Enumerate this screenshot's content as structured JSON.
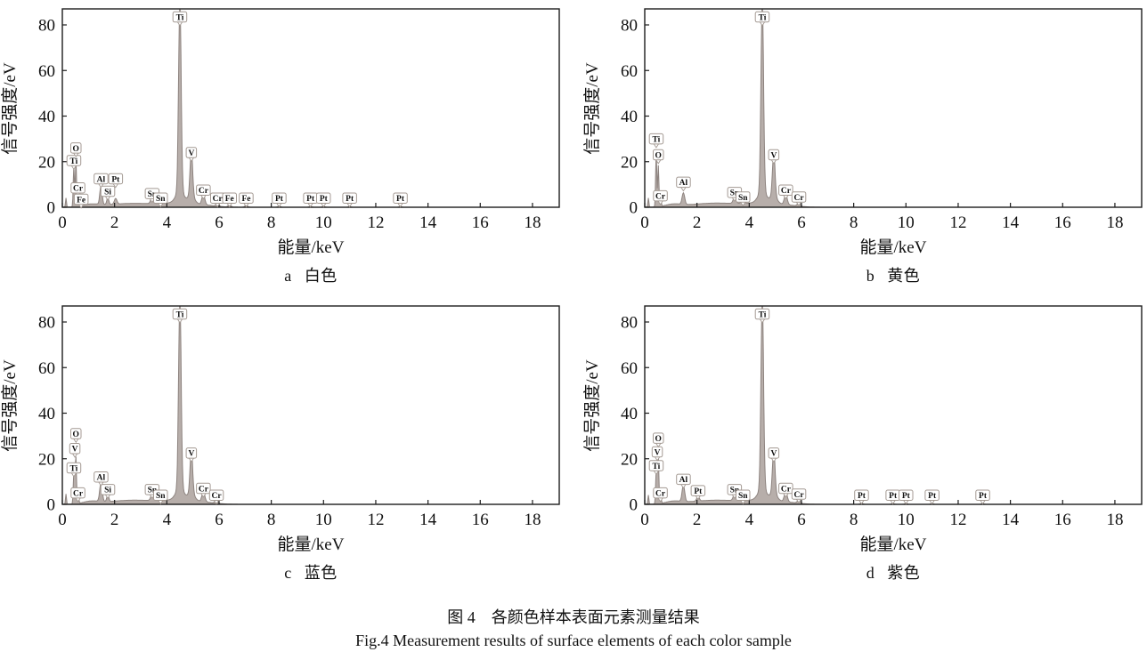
{
  "figure": {
    "caption_zh": "图 4　各颜色样本表面元素测量结果",
    "caption_en": "Fig.4 Measurement results of surface elements of each color sample"
  },
  "style": {
    "curve_fill": "#b7aeaa",
    "curve_stroke": "#8d837f",
    "tag_border": "#a49a93",
    "axis_color": "#1c1c1c"
  },
  "chart_data": [
    {
      "type": "area",
      "panel": "a",
      "sample": "白色",
      "xlabel": "能量/keV",
      "ylabel": "信号强度/eV",
      "xlim": [
        0,
        19
      ],
      "ylim": [
        0,
        87
      ],
      "xticks": [
        0,
        2,
        4,
        6,
        8,
        10,
        12,
        14,
        16,
        18
      ],
      "yticks": [
        0,
        20,
        40,
        60,
        80
      ],
      "peaks": [
        {
          "el": "Ti",
          "x": 0.44,
          "h": 18,
          "tag": 20.5,
          "w": 0.022
        },
        {
          "el": "O",
          "x": 0.52,
          "h": 21,
          "tag": 26,
          "w": 0.022
        },
        {
          "el": "Cr",
          "x": 0.6,
          "h": 6,
          "tag": 8.5,
          "w": 0.025
        },
        {
          "el": "Fe",
          "x": 0.72,
          "h": 2.5,
          "tag": 3.5,
          "w": 0.03
        },
        {
          "el": "Al",
          "x": 1.48,
          "h": 8,
          "tag": 12.5,
          "w": 0.045
        },
        {
          "el": "Si",
          "x": 1.74,
          "h": 3,
          "tag": 7,
          "w": 0.04
        },
        {
          "el": "Pt",
          "x": 2.04,
          "h": 2.5,
          "tag": 12.5,
          "w": 0.05
        },
        {
          "el": "Sn",
          "x": 3.44,
          "h": 2.6,
          "tag": 6,
          "w": 0.055
        },
        {
          "el": "Sn",
          "x": 3.76,
          "h": 1.8,
          "tag": 4,
          "w": 0.055
        },
        {
          "el": "Ti",
          "x": 4.5,
          "h": 83,
          "tag": 83.5,
          "w": 0.05
        },
        {
          "el": "V",
          "x": 4.94,
          "h": 20,
          "tag": 24,
          "w": 0.05
        },
        {
          "el": "Cr",
          "x": 5.4,
          "h": 4.5,
          "tag": 7.5,
          "w": 0.055
        },
        {
          "el": "Cr",
          "x": 5.94,
          "h": 1.2,
          "tag": 4,
          "w": 0.055
        },
        {
          "el": "Fe",
          "x": 6.4,
          "h": 1.0,
          "tag": 4,
          "w": 0.055
        },
        {
          "el": "Fe",
          "x": 7.04,
          "h": 0.8,
          "tag": 4,
          "w": 0.055
        },
        {
          "el": "Pt",
          "x": 8.3,
          "h": 0.5,
          "tag": 4,
          "w": 0.05
        },
        {
          "el": "Pt",
          "x": 9.5,
          "h": 0.4,
          "tag": 4,
          "w": 0.05
        },
        {
          "el": "Pt",
          "x": 10.0,
          "h": 0.4,
          "tag": 4,
          "w": 0.05
        },
        {
          "el": "Pt",
          "x": 11.0,
          "h": 0.3,
          "tag": 4,
          "w": 0.05
        },
        {
          "el": "Pt",
          "x": 12.94,
          "h": 0.3,
          "tag": 4,
          "w": 0.05
        }
      ],
      "background": [
        {
          "x": 0.14,
          "h": 4.0,
          "w": 0.018
        },
        {
          "x": 1.1,
          "h": 1.0,
          "w": 0.3
        },
        {
          "x": 2.7,
          "h": 1.7,
          "w": 1.0
        },
        {
          "x": 4.3,
          "h": 1.2,
          "w": 0.55
        },
        {
          "x": 5.3,
          "h": 1.0,
          "w": 0.5
        },
        {
          "x": 4.5,
          "h": 5.0,
          "w": 0.16
        },
        {
          "x": 4.94,
          "h": 3.0,
          "w": 0.13
        }
      ]
    },
    {
      "type": "area",
      "panel": "b",
      "sample": "黄色",
      "xlabel": "能量/keV",
      "ylabel": "信号强度/eV",
      "xlim": [
        0,
        19
      ],
      "ylim": [
        0,
        87
      ],
      "xticks": [
        0,
        2,
        4,
        6,
        8,
        10,
        12,
        14,
        16,
        18
      ],
      "yticks": [
        0,
        20,
        40,
        60,
        80
      ],
      "peaks": [
        {
          "el": "Ti",
          "x": 0.44,
          "h": 24,
          "tag": 30,
          "w": 0.022
        },
        {
          "el": "O",
          "x": 0.52,
          "h": 18,
          "tag": 23,
          "w": 0.022
        },
        {
          "el": "Cr",
          "x": 0.6,
          "h": 5,
          "tag": 5,
          "w": 0.025
        },
        {
          "el": "Al",
          "x": 1.48,
          "h": 5,
          "tag": 11,
          "w": 0.05
        },
        {
          "el": "Sn",
          "x": 3.44,
          "h": 2.6,
          "tag": 6.5,
          "w": 0.055
        },
        {
          "el": "Sn",
          "x": 3.76,
          "h": 1.8,
          "tag": 4.5,
          "w": 0.055
        },
        {
          "el": "Ti",
          "x": 4.5,
          "h": 83,
          "tag": 83.5,
          "w": 0.05
        },
        {
          "el": "V",
          "x": 4.94,
          "h": 19,
          "tag": 23,
          "w": 0.05
        },
        {
          "el": "Cr",
          "x": 5.4,
          "h": 4.5,
          "tag": 7.5,
          "w": 0.055
        },
        {
          "el": "Cr",
          "x": 5.9,
          "h": 1.5,
          "tag": 4.5,
          "w": 0.055
        }
      ],
      "background": [
        {
          "x": 0.14,
          "h": 4.0,
          "w": 0.018
        },
        {
          "x": 1.1,
          "h": 1.0,
          "w": 0.3
        },
        {
          "x": 2.7,
          "h": 1.8,
          "w": 1.0
        },
        {
          "x": 4.3,
          "h": 1.2,
          "w": 0.55
        },
        {
          "x": 5.3,
          "h": 1.0,
          "w": 0.5
        },
        {
          "x": 4.5,
          "h": 5.0,
          "w": 0.16
        },
        {
          "x": 4.94,
          "h": 3.0,
          "w": 0.13
        }
      ]
    },
    {
      "type": "area",
      "panel": "c",
      "sample": "蓝色",
      "xlabel": "能量/keV",
      "ylabel": "信号强度/eV",
      "xlim": [
        0,
        19
      ],
      "ylim": [
        0,
        87
      ],
      "xticks": [
        0,
        2,
        4,
        6,
        8,
        10,
        12,
        14,
        16,
        18
      ],
      "yticks": [
        0,
        20,
        40,
        60,
        80
      ],
      "peaks": [
        {
          "el": "Ti",
          "x": 0.44,
          "h": 13,
          "tag": 16,
          "w": 0.022
        },
        {
          "el": "V",
          "x": 0.48,
          "h": 8,
          "tag": 24.5,
          "w": 0.022
        },
        {
          "el": "O",
          "x": 0.52,
          "h": 19,
          "tag": 31,
          "w": 0.022
        },
        {
          "el": "Cr",
          "x": 0.6,
          "h": 5,
          "tag": 5,
          "w": 0.025
        },
        {
          "el": "Al",
          "x": 1.48,
          "h": 8,
          "tag": 12,
          "w": 0.05
        },
        {
          "el": "Si",
          "x": 1.74,
          "h": 3,
          "tag": 6.5,
          "w": 0.04
        },
        {
          "el": "Sn",
          "x": 3.44,
          "h": 2.6,
          "tag": 6.5,
          "w": 0.055
        },
        {
          "el": "Sn",
          "x": 3.76,
          "h": 1.6,
          "tag": 4,
          "w": 0.055
        },
        {
          "el": "Ti",
          "x": 4.5,
          "h": 83,
          "tag": 83.5,
          "w": 0.05
        },
        {
          "el": "V",
          "x": 4.94,
          "h": 19,
          "tag": 22.5,
          "w": 0.05
        },
        {
          "el": "Cr",
          "x": 5.4,
          "h": 4.5,
          "tag": 7,
          "w": 0.055
        },
        {
          "el": "Cr",
          "x": 5.9,
          "h": 1.5,
          "tag": 4,
          "w": 0.055
        }
      ],
      "background": [
        {
          "x": 0.14,
          "h": 4.5,
          "w": 0.018
        },
        {
          "x": 1.1,
          "h": 1.0,
          "w": 0.3
        },
        {
          "x": 2.7,
          "h": 1.8,
          "w": 1.0
        },
        {
          "x": 4.3,
          "h": 1.2,
          "w": 0.55
        },
        {
          "x": 5.3,
          "h": 1.0,
          "w": 0.5
        },
        {
          "x": 4.5,
          "h": 5.0,
          "w": 0.16
        },
        {
          "x": 4.94,
          "h": 3.0,
          "w": 0.13
        }
      ]
    },
    {
      "type": "area",
      "panel": "d",
      "sample": "紫色",
      "xlabel": "能量/keV",
      "ylabel": "信号强度/eV",
      "xlim": [
        0,
        19
      ],
      "ylim": [
        0,
        87
      ],
      "xticks": [
        0,
        2,
        4,
        6,
        8,
        10,
        12,
        14,
        16,
        18
      ],
      "yticks": [
        0,
        20,
        40,
        60,
        80
      ],
      "peaks": [
        {
          "el": "Ti",
          "x": 0.44,
          "h": 14,
          "tag": 17,
          "w": 0.022
        },
        {
          "el": "V",
          "x": 0.48,
          "h": 8,
          "tag": 23,
          "w": 0.022
        },
        {
          "el": "O",
          "x": 0.52,
          "h": 20,
          "tag": 29,
          "w": 0.022
        },
        {
          "el": "Cr",
          "x": 0.6,
          "h": 5,
          "tag": 5,
          "w": 0.025
        },
        {
          "el": "Al",
          "x": 1.48,
          "h": 7,
          "tag": 11,
          "w": 0.05
        },
        {
          "el": "Pt",
          "x": 2.04,
          "h": 2,
          "tag": 6,
          "w": 0.05
        },
        {
          "el": "Sn",
          "x": 3.44,
          "h": 2.6,
          "tag": 6.5,
          "w": 0.055
        },
        {
          "el": "Sn",
          "x": 3.76,
          "h": 1.6,
          "tag": 4,
          "w": 0.055
        },
        {
          "el": "Ti",
          "x": 4.5,
          "h": 83,
          "tag": 83.5,
          "w": 0.05
        },
        {
          "el": "V",
          "x": 4.94,
          "h": 19,
          "tag": 22.5,
          "w": 0.05
        },
        {
          "el": "Cr",
          "x": 5.4,
          "h": 4.5,
          "tag": 7,
          "w": 0.055
        },
        {
          "el": "Cr",
          "x": 5.9,
          "h": 1.5,
          "tag": 4.5,
          "w": 0.055
        },
        {
          "el": "Pt",
          "x": 8.3,
          "h": 0.5,
          "tag": 4,
          "w": 0.05
        },
        {
          "el": "Pt",
          "x": 9.5,
          "h": 0.4,
          "tag": 4,
          "w": 0.05
        },
        {
          "el": "Pt",
          "x": 10.0,
          "h": 0.4,
          "tag": 4,
          "w": 0.05
        },
        {
          "el": "Pt",
          "x": 11.0,
          "h": 0.3,
          "tag": 4,
          "w": 0.05
        },
        {
          "el": "Pt",
          "x": 12.94,
          "h": 0.3,
          "tag": 4,
          "w": 0.05
        }
      ],
      "background": [
        {
          "x": 0.14,
          "h": 4.0,
          "w": 0.018
        },
        {
          "x": 1.1,
          "h": 1.0,
          "w": 0.3
        },
        {
          "x": 2.7,
          "h": 1.8,
          "w": 1.0
        },
        {
          "x": 4.3,
          "h": 1.2,
          "w": 0.55
        },
        {
          "x": 5.3,
          "h": 1.0,
          "w": 0.5
        },
        {
          "x": 4.5,
          "h": 5.0,
          "w": 0.16
        },
        {
          "x": 4.94,
          "h": 3.0,
          "w": 0.13
        }
      ]
    }
  ]
}
